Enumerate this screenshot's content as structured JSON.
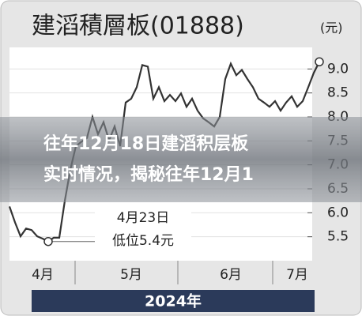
{
  "chart_data": {
    "type": "line",
    "title": "建滔積層板(01888)",
    "unit": "(元)",
    "values": [
      6.13,
      5.8,
      5.51,
      5.67,
      5.64,
      5.51,
      5.46,
      5.4,
      5.48,
      5.48,
      6.25,
      6.9,
      7.39,
      7.48,
      7.56,
      8.0,
      7.64,
      7.89,
      7.51,
      7.8,
      7.39,
      8.3,
      8.38,
      8.62,
      9.08,
      9.05,
      8.38,
      8.62,
      8.33,
      8.46,
      8.33,
      8.49,
      8.21,
      8.38,
      8.13,
      7.97,
      7.89,
      7.8,
      8.0,
      8.79,
      9.11,
      8.87,
      8.98,
      8.79,
      8.62,
      8.38,
      8.3,
      8.21,
      8.33,
      8.13,
      8.3,
      8.43,
      8.21,
      8.33,
      8.62,
      8.92,
      9.15
    ],
    "color": "#333333",
    "xlim": [
      0,
      56
    ],
    "xticks": [
      {
        "value": 6,
        "label": "4月"
      },
      {
        "value": 22,
        "label": "5月"
      },
      {
        "value": 40,
        "label": "6月"
      },
      {
        "value": 52,
        "label": "7月"
      }
    ],
    "ylim": [
      5.0,
      9.45
    ],
    "yticks": [
      {
        "value": 5.5,
        "label": "5.5"
      },
      {
        "value": 6,
        "label": "6.0"
      },
      {
        "value": 6.5,
        "label": "6.5"
      },
      {
        "value": 7,
        "label": "7.0"
      },
      {
        "value": 7.5,
        "label": "7.5"
      },
      {
        "value": 8,
        "label": "8.0"
      },
      {
        "value": 8.5,
        "label": "8.5"
      },
      {
        "value": 9,
        "label": "9.0"
      }
    ],
    "grid": true,
    "annotation": {
      "date": "4月23日",
      "text": "低位5.4元"
    },
    "footer": "2024年"
  },
  "overlay": [
    "往年12月18日建滔积层板",
    "实时情况，揭秘往年12月1"
  ]
}
